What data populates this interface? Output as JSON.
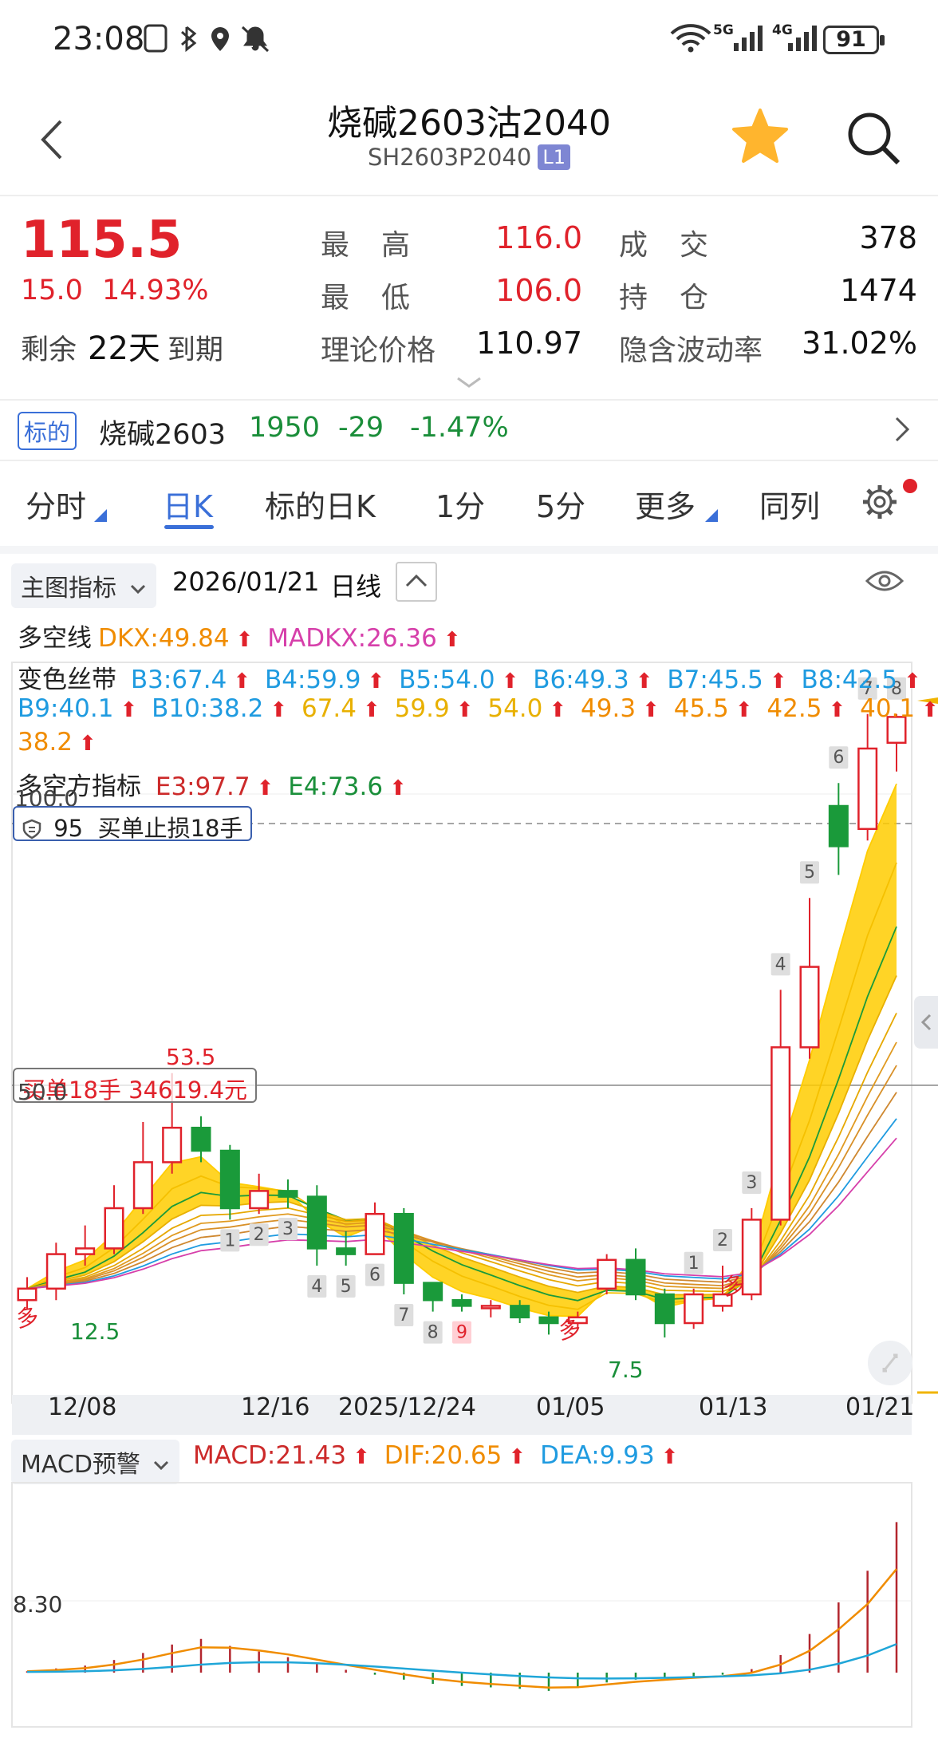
{
  "status_bar": {
    "time": "23:08",
    "battery": "91",
    "signal_5g": "5G",
    "signal_4g": "4G"
  },
  "header": {
    "title": "烧碱2603沽2040",
    "code": "SH2603P2040",
    "badge": "L1"
  },
  "quote": {
    "price": "115.5",
    "change": "15.0",
    "change_pct": "14.93%",
    "remaining_label": "剩余",
    "remaining_days": "22天",
    "remaining_suffix": "到期",
    "high_label": "最　高",
    "high": "116.0",
    "low_label": "最　低",
    "low": "106.0",
    "theo_label": "理论价格",
    "theo": "110.97",
    "volume_label": "成　交",
    "volume": "378",
    "oi_label": "持　仓",
    "oi": "1474",
    "iv_label": "隐含波动率",
    "iv": "31.02%"
  },
  "underlying": {
    "tag": "标的",
    "name": "烧碱2603",
    "price": "1950",
    "change": "-29",
    "change_pct": "-1.47%"
  },
  "tabs": [
    {
      "label": "分时"
    },
    {
      "label": "日K"
    },
    {
      "label": "标的日K"
    },
    {
      "label": "1分"
    },
    {
      "label": "5分"
    },
    {
      "label": "更多"
    },
    {
      "label": "同列"
    }
  ],
  "chart_header": {
    "indicator_btn": "主图指标",
    "date": "2026/01/21",
    "period": "日线"
  },
  "indicators": {
    "dkx_name": "多空线",
    "dkx": "DKX:49.84",
    "madkx": "MADKX:26.36",
    "band_name": "变色丝带",
    "b3": "B3:67.4",
    "b4": "B4:59.9",
    "b5": "B5:54.0",
    "b6": "B6:49.3",
    "b7": "B7:45.5",
    "b8": "B8:42.5",
    "b9": "B9:40.1",
    "b10": "B10:38.2",
    "v1": "67.4",
    "v2": "59.9",
    "v3": "54.0",
    "v4": "49.3",
    "v5": "45.5",
    "v6": "42.5",
    "v7": "40.1",
    "v8": "38.2",
    "dkf_name": "多空方指标",
    "e3": "E3:97.7",
    "e4": "E4:73.6",
    "arrow": "⬆"
  },
  "stoploss": {
    "num": "95",
    "text": "买单止损18手"
  },
  "order": {
    "text": "买单18手  34619.4元"
  },
  "price_labels": {
    "p_high": "53.5",
    "p_level": "50.0",
    "p_left": "12.5",
    "p_low": "7.5",
    "p_top": "100.0"
  },
  "x_axis": [
    "12/08",
    "12/16",
    "2025/12/24",
    "01/05",
    "01/13",
    "01/21"
  ],
  "macd": {
    "name": "MACD预警",
    "macd": "MACD:21.43",
    "dif": "DIF:20.65",
    "dea": "DEA:9.93",
    "level": "8.30"
  },
  "signals": {
    "duo": "多"
  },
  "colors": {
    "up": "#e0222b",
    "down": "#1a9a3a",
    "accent": "#3a6fd8",
    "band": "#ffcc00",
    "band_down": "#18a8b0"
  },
  "chart_data": {
    "type": "candlestick",
    "x": [
      "12/08",
      "12/09",
      "12/10",
      "12/11",
      "12/12",
      "12/15",
      "12/16",
      "12/17",
      "12/18",
      "12/19",
      "12/22",
      "12/23",
      "12/24",
      "12/25",
      "12/26",
      "12/29",
      "12/30",
      "12/31",
      "01/05",
      "01/06",
      "01/07",
      "01/08",
      "01/09",
      "01/12",
      "01/13",
      "01/14",
      "01/15",
      "01/16",
      "01/19",
      "01/20",
      "01/21"
    ],
    "open": [
      14,
      16,
      22,
      23,
      30,
      38,
      44,
      40,
      30,
      33,
      32,
      23,
      22,
      29,
      17,
      14,
      13,
      13,
      11,
      10,
      16,
      21,
      15,
      10,
      13,
      15,
      28,
      58,
      100,
      96,
      111
    ],
    "close": [
      16,
      22,
      23,
      30,
      38,
      44,
      40,
      30,
      33,
      32,
      23,
      22,
      29,
      17,
      14,
      13,
      13,
      11,
      10,
      11,
      21,
      15,
      10,
      15,
      15,
      28,
      58,
      72,
      93,
      110,
      115.5
    ],
    "high": [
      18,
      24,
      27,
      34,
      45,
      53.5,
      46,
      41,
      36,
      35,
      34,
      26,
      31,
      30,
      17,
      15,
      14,
      14,
      12,
      12,
      22,
      23,
      16,
      16,
      20,
      30,
      68,
      84,
      104,
      116,
      116
    ],
    "low": [
      12.5,
      14,
      20,
      22,
      29,
      36,
      38,
      28,
      29,
      30,
      20,
      20,
      22,
      15,
      12,
      12,
      11,
      10,
      8,
      9,
      15,
      14,
      7.5,
      9,
      12,
      14,
      27,
      56,
      88,
      94,
      106
    ],
    "y_range": [
      0,
      120
    ],
    "macd_bars": [
      0.2,
      0.6,
      1.0,
      1.8,
      2.8,
      4.0,
      4.8,
      3.8,
      3.0,
      2.2,
      1.2,
      0.4,
      -0.3,
      -1.0,
      -1.6,
      -1.9,
      -2.1,
      -2.3,
      -2.6,
      -2.2,
      -1.4,
      -1.0,
      -0.8,
      -0.5,
      -0.3,
      0.5,
      2.5,
      5.5,
      10.0,
      14.5,
      21.43
    ]
  }
}
